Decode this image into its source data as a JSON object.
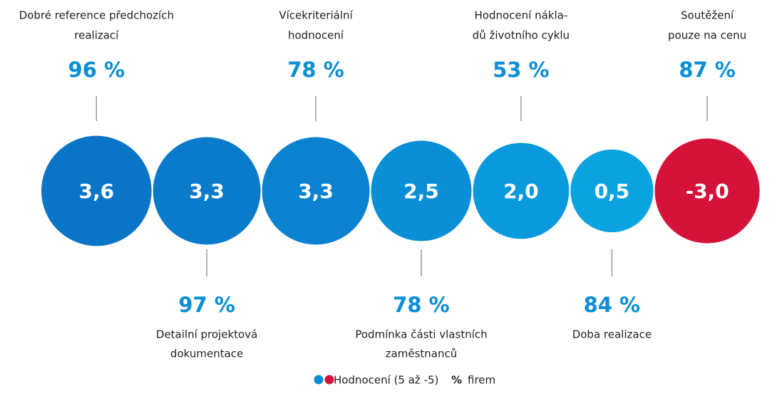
{
  "chart_data": {
    "type": "bubble",
    "categories": [
      [
        "Dobré reference předchozích",
        "realizací"
      ],
      [
        "Detailní projektová",
        "dokumentace"
      ],
      [
        "Vícekriteriální",
        "hodnocení"
      ],
      [
        "Podmínka části vlastních",
        "zaměstnanců"
      ],
      [
        "Hodnocení nákla-",
        "dů životního cyklu"
      ],
      [
        "Doba realizace"
      ],
      [
        "Soutěžení",
        "pouze na cenu"
      ]
    ],
    "values": [
      3.6,
      3.3,
      3.3,
      2.5,
      2.0,
      0.5,
      -3.0
    ],
    "value_labels": [
      "3,6",
      "3,3",
      "3,3",
      "2,5",
      "2,0",
      "0,5",
      "-3,0"
    ],
    "percentages": [
      96,
      97,
      78,
      78,
      53,
      84,
      87
    ],
    "percentage_labels": [
      "96 %",
      "97 %",
      "78 %",
      "78 %",
      "53 %",
      "84 %",
      "87 %"
    ],
    "colors": [
      "#0a74c6",
      "#0a7bca",
      "#0a82cf",
      "#0a8ed6",
      "#0a99dc",
      "#0aa3e0",
      "#d5133a"
    ],
    "legend": {
      "label": "Hodnocení (5 až -5)",
      "colors": [
        "#0a8ed6",
        "#d5133a"
      ],
      "percent_symbol": "%",
      "percent_label": "firem"
    }
  }
}
